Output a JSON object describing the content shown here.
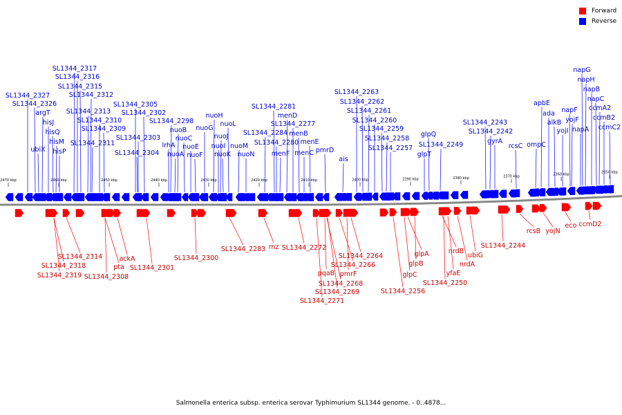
{
  "legend": [
    {
      "label": "Forward",
      "color": "#ff0000"
    },
    {
      "label": "Reverse",
      "color": "#0000ff"
    }
  ],
  "caption": "Salmonella enterica subsp. enterica serovar Typhimurium SL1344 genome. - 0..4878...",
  "colors": {
    "forward": "#ff0000",
    "reverse": "#0000ff",
    "label_forward": "#cc0000",
    "label_reverse": "#0000cc",
    "backbone": "#888888"
  },
  "scale_labels": [
    "2470 kbp",
    "2460 kbp",
    "2450 kbp",
    "2440 kbp",
    "2430 kbp",
    "2420 kbp",
    "2410 kbp",
    "2400 kbp",
    "2390 kbp",
    "2380 kbp",
    "2370 kbp",
    "2360 kbp",
    "2350 kbp"
  ],
  "reverse_genes": [
    "SL1344_2317",
    "SL1344_2316",
    "SL1344_2315",
    "SL1344_2312",
    "SL1344_2327",
    "SL1344_2326",
    "argT",
    "hisJ",
    "hisQ",
    "hisM",
    "hisP",
    "ubiX",
    "SL1344_2313",
    "SL1344_2310",
    "SL1344_2309",
    "SL1344_2311",
    "SL1344_2305",
    "SL1344_2302",
    "SL1344_2298",
    "SL1344_2303",
    "SL1344_2304",
    "nuoB",
    "lrhA",
    "nuoC",
    "nuoA",
    "nuoE",
    "nuoF",
    "nuoH",
    "nuoG",
    "nuoL",
    "nuoJ",
    "nuoI",
    "nuoK",
    "nuoM",
    "nuoN",
    "SL1344_2281",
    "menD",
    "SL1344_2277",
    "menB",
    "SL1344_2284",
    "SL1344_2280",
    "menE",
    "menF",
    "menC",
    "pmrD",
    "ais",
    "SL1344_2263",
    "SL1344_2262",
    "SL1344_2261",
    "SL1344_2260",
    "SL1344_2259",
    "SL1344_2258",
    "SL1344_2257",
    "glpQ",
    "SL1344_2249",
    "glpT",
    "SL1344_2243",
    "SL1344_2242",
    "gyrA",
    "rcsC",
    "apbE",
    "ada",
    "alkB",
    "ompC",
    "yojI",
    "napF",
    "yojF",
    "napA",
    "napG",
    "napH",
    "napB",
    "napC",
    "ccmA2",
    "ccmB2",
    "ccmC2"
  ],
  "forward_genes": [
    "SL1344_2314",
    "SL1344_2318",
    "SL1344_2319",
    "SL1344_2308",
    "pta",
    "ackA",
    "SL1344_2301",
    "SL1344_2300",
    "SL1344_2283",
    "rnz",
    "SL1344_2272",
    "pqaB",
    "SL1344_2268",
    "SL1344_2269",
    "SL1344_2271",
    "pmrF",
    "SL1344_2266",
    "SL1344_2264",
    "glpC",
    "glpB",
    "glpA",
    "SL1344_2256",
    "yfaE",
    "SL1344_2250",
    "nrdB",
    "nrdA",
    "ubiG",
    "SL1344_2244",
    "rcsB",
    "yojN",
    "eco",
    "ccmD2"
  ]
}
